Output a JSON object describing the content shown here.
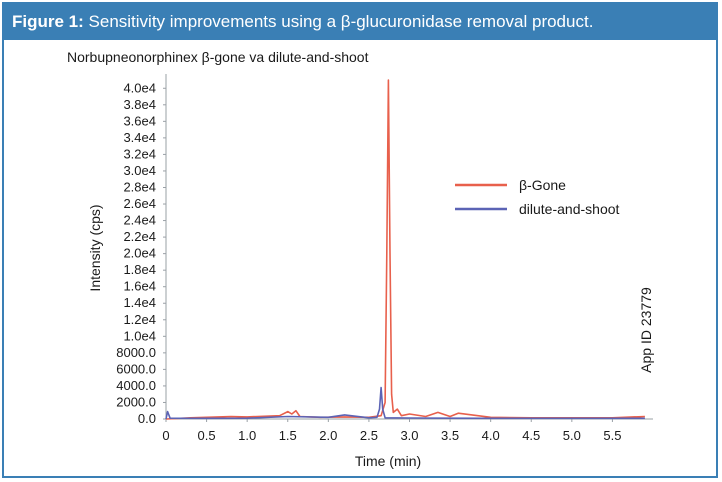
{
  "figure": {
    "label": "Figure 1:",
    "caption": " Sensitivity improvements using a β-glucuronidase removal product."
  },
  "annotation": "App ID 23779",
  "chart_data": {
    "type": "line",
    "title": "Norbupneonorphinex β-gone va dilute-and-shoot",
    "xlabel": "Time (min)",
    "ylabel": "Intensity (cps)",
    "xlim": [
      0,
      6.0
    ],
    "ylim": [
      0,
      41000
    ],
    "xticks": [
      "0",
      "0.5",
      "1.0",
      "1.5",
      "2.0",
      "2.5",
      "3.0",
      "3.5",
      "4.0",
      "4.5",
      "5.0",
      "5.5"
    ],
    "yticks": [
      "0.0",
      "2000.0",
      "4000.0",
      "6000.0",
      "8000.0",
      "1.0e4",
      "1.2e4",
      "1.4e4",
      "1.6e4",
      "1.8e4",
      "2.0e4",
      "2.2e4",
      "2.4e4",
      "2.6e4",
      "2.8e4",
      "3.0e4",
      "3.2e4",
      "3.4e4",
      "3.6e4",
      "3.8e4",
      "4.0e4"
    ],
    "legend_position": "right",
    "series": [
      {
        "name": "β-Gone",
        "color": "#e8604c",
        "x": [
          0,
          0.3,
          0.5,
          0.8,
          1.0,
          1.4,
          1.5,
          1.55,
          1.6,
          1.65,
          1.9,
          2.2,
          2.5,
          2.65,
          2.7,
          2.72,
          2.74,
          2.76,
          2.78,
          2.8,
          2.85,
          2.9,
          3.0,
          3.2,
          3.35,
          3.5,
          3.6,
          4.0,
          4.5,
          5.0,
          5.5,
          5.9
        ],
        "y": [
          0,
          150,
          200,
          300,
          250,
          400,
          900,
          600,
          1000,
          300,
          200,
          250,
          200,
          400,
          2000,
          20000,
          41000,
          20000,
          3000,
          800,
          1200,
          400,
          600,
          300,
          800,
          300,
          700,
          200,
          150,
          150,
          150,
          300
        ]
      },
      {
        "name": "dilute-and-shoot",
        "color": "#5b63b5",
        "x": [
          0,
          0.02,
          0.05,
          0.5,
          1.0,
          1.5,
          2.0,
          2.2,
          2.5,
          2.6,
          2.63,
          2.65,
          2.67,
          2.7,
          3.0,
          3.5,
          4.0,
          5.0,
          5.9
        ],
        "y": [
          0,
          900,
          100,
          80,
          100,
          300,
          200,
          500,
          150,
          200,
          1200,
          3800,
          1200,
          150,
          120,
          100,
          80,
          80,
          80
        ]
      }
    ]
  }
}
